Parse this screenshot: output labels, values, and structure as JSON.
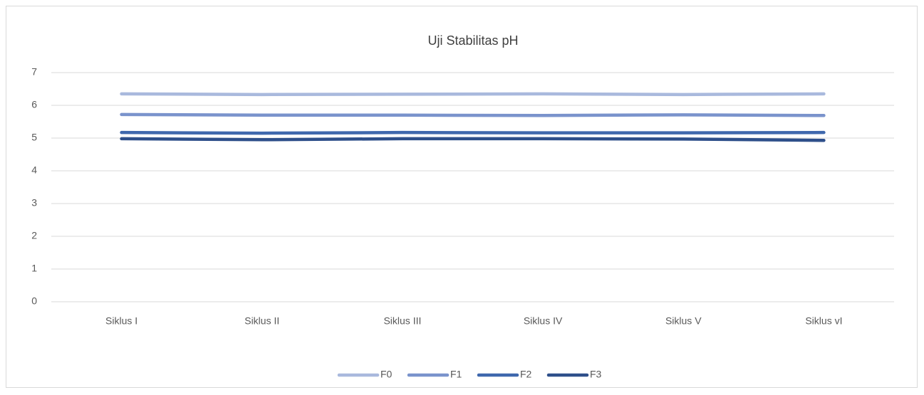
{
  "chart_data": {
    "type": "line",
    "title": "Uji Stabilitas pH",
    "categories": [
      "Siklus I",
      "Siklus II",
      "Siklus III",
      "Siklus IV",
      "Siklus V",
      "Siklus vI"
    ],
    "series": [
      {
        "name": "F0",
        "color": "#a9b9dd",
        "values": [
          6.35,
          6.33,
          6.34,
          6.35,
          6.33,
          6.35
        ]
      },
      {
        "name": "F1",
        "color": "#7a93cc",
        "values": [
          5.72,
          5.7,
          5.7,
          5.69,
          5.71,
          5.69
        ]
      },
      {
        "name": "F2",
        "color": "#3f68ad",
        "values": [
          5.17,
          5.15,
          5.17,
          5.16,
          5.16,
          5.17
        ]
      },
      {
        "name": "F3",
        "color": "#2e4f8a",
        "values": [
          4.98,
          4.95,
          4.98,
          4.98,
          4.97,
          4.93
        ]
      }
    ],
    "ylim": [
      0,
      7
    ],
    "yticks": [
      0,
      1,
      2,
      3,
      4,
      5,
      6,
      7
    ],
    "grid": true,
    "legend": "bottom"
  }
}
